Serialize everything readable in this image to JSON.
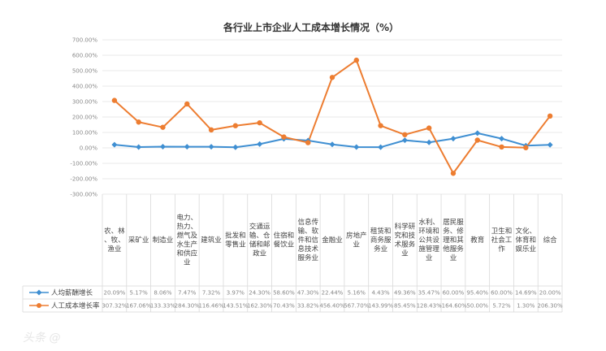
{
  "chart_data": {
    "type": "line",
    "title": "各行业上市企业人工成本增长情况（%）",
    "yaxis": {
      "min": -300,
      "max": 700,
      "step": 100,
      "tick_labels": [
        "700.00%",
        "600.00%",
        "500.00%",
        "400.00%",
        "300.00%",
        "200.00%",
        "100.00%",
        "0.00%",
        "-100.00%",
        "-200.00%",
        "-300.00%"
      ]
    },
    "grid": true,
    "legend_position": "bottom-left-table",
    "categories": [
      "农、林、牧、渔业",
      "采矿业",
      "制造业",
      "电力、热力、燃气及水生产和供应业",
      "建筑业",
      "批发和零售业",
      "交通运输、仓储和邮政业",
      "住宿和餐饮业",
      "信息传输、软件和信息技术服务业",
      "金融业",
      "房地产业",
      "租赁和商务服务业",
      "科学研究和技术服务业",
      "水利、环境和公共设施管理业",
      "居民服务、修理和其他服务业",
      "教育",
      "卫生和社会工作",
      "文化、体育和娱乐业",
      "综合"
    ],
    "series": [
      {
        "name": "人均薪酬增长",
        "color": "#3f8fd2",
        "marker": "diamond",
        "values": [
          20.09,
          5.17,
          8.06,
          7.47,
          7.32,
          3.97,
          24.3,
          58.6,
          47.3,
          22.44,
          5.16,
          4.43,
          49.36,
          35.47,
          60.0,
          95.4,
          60.0,
          14.69,
          20.0
        ],
        "value_labels": [
          "20.09%",
          "5.17%",
          "8.06%",
          "7.47%",
          "7.32%",
          "3.97%",
          "24.30%",
          "58.60%",
          "47.30%",
          "22.44%",
          "5.16%",
          "4.43%",
          "49.36%",
          "35.47%",
          "60.00%",
          "95.40%",
          "60.00%",
          "14.69%",
          "20.00%"
        ]
      },
      {
        "name": "人工成本增长率",
        "color": "#ed7d31",
        "marker": "circle",
        "values": [
          307.32,
          167.06,
          133.33,
          284.3,
          116.46,
          143.51,
          162.3,
          70.43,
          33.82,
          456.4,
          567.7,
          143.99,
          85.45,
          128.43,
          -164.6,
          50.0,
          5.72,
          1.3,
          206.3
        ],
        "value_labels": [
          "307.32%",
          "167.06%",
          "133.33%",
          "284.30%",
          "116.46%",
          "143.51%",
          "162.30%",
          "70.43%",
          "33.82%",
          "456.40%",
          "567.70%",
          "143.99%",
          "85.45%",
          "128.43%",
          "-164.60%",
          "50.00%",
          "5.72%",
          "1.30%",
          "206.30%"
        ]
      }
    ]
  },
  "watermark": "头条 @"
}
